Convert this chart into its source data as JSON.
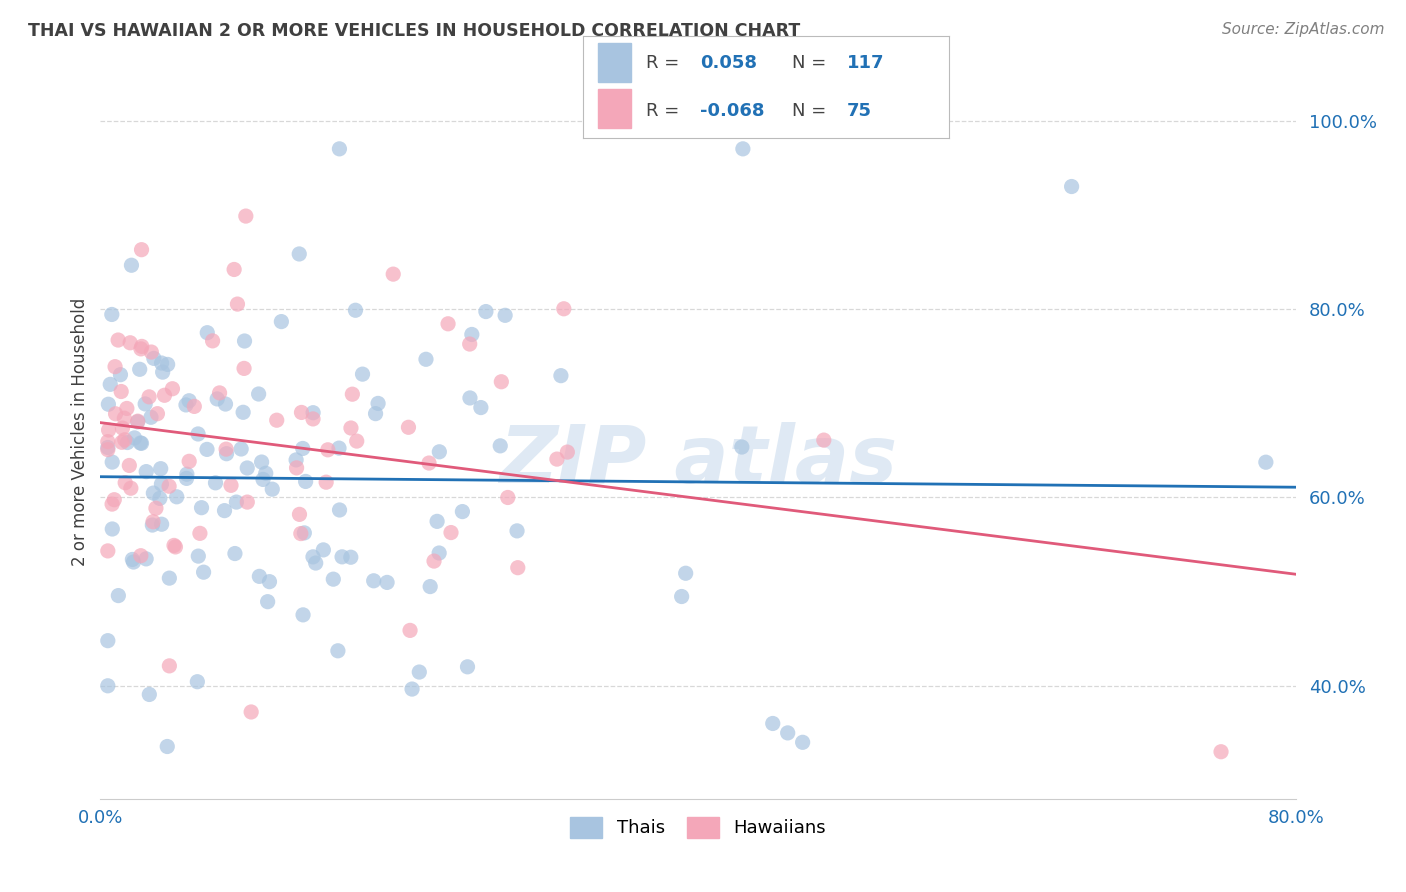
{
  "title": "THAI VS HAWAIIAN 2 OR MORE VEHICLES IN HOUSEHOLD CORRELATION CHART",
  "source": "Source: ZipAtlas.com",
  "ylabel": "2 or more Vehicles in Household",
  "watermark": "ZIPAtlas",
  "xlim": [
    0.0,
    0.8
  ],
  "ylim": [
    0.28,
    1.06
  ],
  "yticks": [
    0.4,
    0.6,
    0.8,
    1.0
  ],
  "ytick_labels": [
    "40.0%",
    "60.0%",
    "80.0%",
    "100.0%"
  ],
  "xticks": [
    0.0,
    0.1,
    0.2,
    0.3,
    0.4,
    0.5,
    0.6,
    0.7,
    0.8
  ],
  "xtick_labels": [
    "0.0%",
    "",
    "",
    "",
    "",
    "",
    "",
    "",
    "80.0%"
  ],
  "R_thai": 0.058,
  "N_thai": 117,
  "R_hawaiian": -0.068,
  "N_hawaiian": 75,
  "color_thai": "#a8c4e0",
  "color_hawaiian": "#f4a7b9",
  "line_color_thai": "#2171b5",
  "line_color_hawaiian": "#e05a7a",
  "background_color": "#ffffff",
  "grid_color": "#d8d8d8",
  "title_color": "#404040",
  "source_color": "#808080",
  "marker_size": 120,
  "marker_alpha": 0.7
}
